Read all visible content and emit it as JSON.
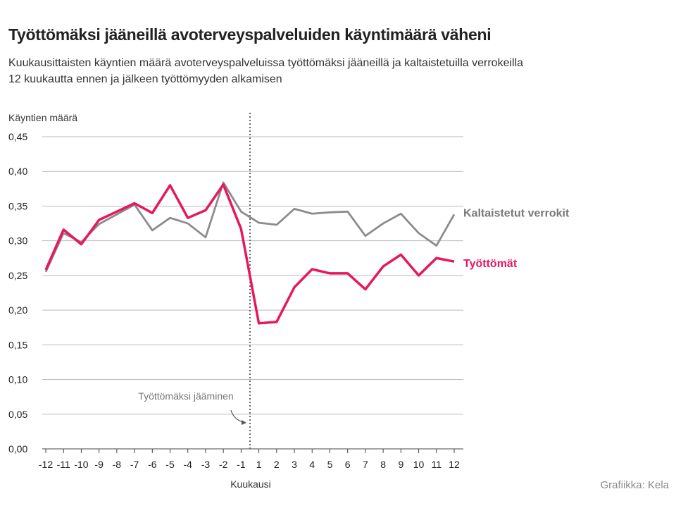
{
  "title": "Työttömäksi jääneillä avoterveyspalveluiden käyntimäärä väheni",
  "subtitle_line1": "Kuukausittaisten käyntien määrä avoterveyspalveluissa työttömäksi jääneillä ja kaltaistetuilla verrokeilla",
  "subtitle_line2": "12 kuukautta ennen ja jälkeen työttömyyden alkamisen",
  "credit": "Grafiikka: Kela",
  "chart_data": {
    "type": "line",
    "ylabel": "Käyntien määrä",
    "xlabel": "Kuukausi",
    "ylim": [
      0,
      0.45
    ],
    "yticks": [
      "0,00",
      "0,05",
      "0,10",
      "0,15",
      "0,20",
      "0,25",
      "0,30",
      "0,35",
      "0,40",
      "0,45"
    ],
    "grid": true,
    "x": [
      "-12",
      "-11",
      "-10",
      "-9",
      "-8",
      "-7",
      "-6",
      "-5",
      "-4",
      "-3",
      "-2",
      "-1",
      "1",
      "2",
      "3",
      "4",
      "5",
      "6",
      "7",
      "8",
      "9",
      "10",
      "11",
      "12"
    ],
    "annotation": "Työttömäksi jääminen",
    "series": [
      {
        "name": "Kaltaistetut verrokit",
        "color": "#8c8c8c",
        "values": [
          0.255,
          0.311,
          0.298,
          0.324,
          0.338,
          0.352,
          0.315,
          0.333,
          0.325,
          0.305,
          0.384,
          0.342,
          0.326,
          0.323,
          0.346,
          0.339,
          0.341,
          0.342,
          0.307,
          0.325,
          0.339,
          0.311,
          0.293,
          0.338
        ]
      },
      {
        "name": "Työttömät",
        "color": "#e8175d",
        "values": [
          0.258,
          0.316,
          0.295,
          0.33,
          0.342,
          0.354,
          0.34,
          0.38,
          0.333,
          0.344,
          0.381,
          0.317,
          0.181,
          0.183,
          0.233,
          0.259,
          0.253,
          0.253,
          0.23,
          0.263,
          0.28,
          0.25,
          0.275,
          0.27
        ]
      }
    ]
  }
}
